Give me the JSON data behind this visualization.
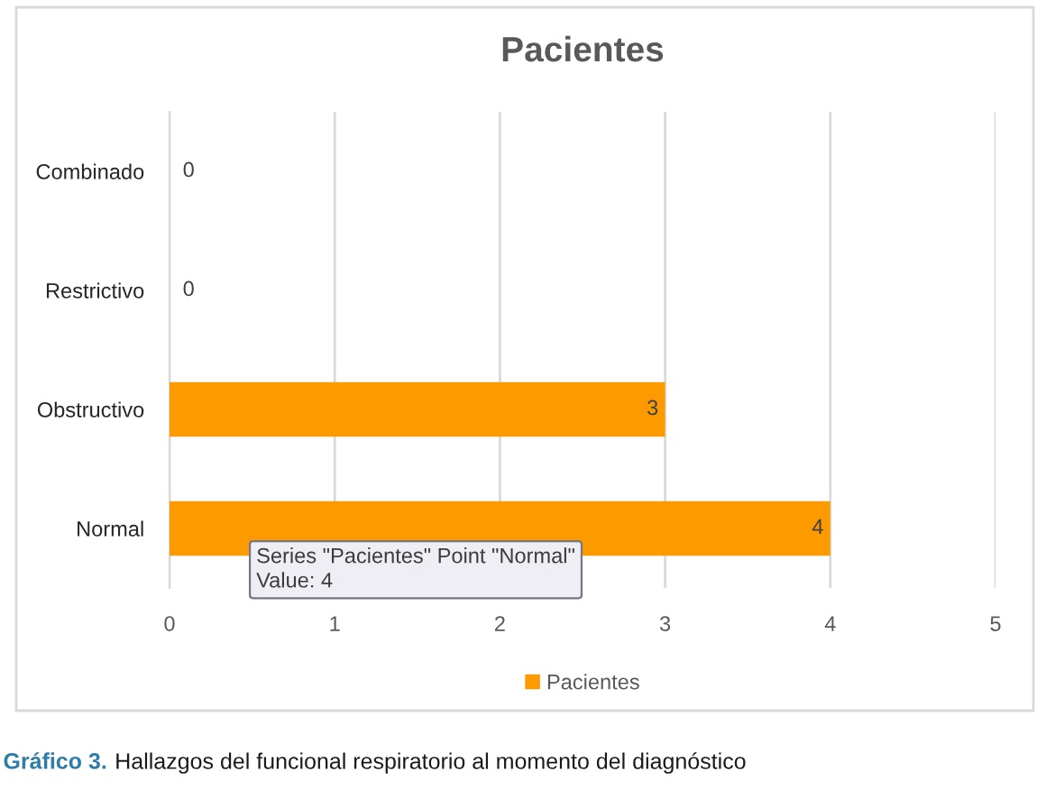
{
  "chart_data": {
    "type": "bar",
    "orientation": "horizontal",
    "title": "Pacientes",
    "categories": [
      "Combinado",
      "Restrictivo",
      "Obstructivo",
      "Normal"
    ],
    "series": [
      {
        "name": "Pacientes",
        "color": "#fd9a00",
        "values": [
          0,
          0,
          3,
          4
        ]
      }
    ],
    "xlim": [
      0,
      5
    ],
    "xticks": [
      0,
      1,
      2,
      3,
      4,
      5
    ],
    "grid": "x",
    "legend": "bottom",
    "data_labels": true,
    "annotations": [
      "Series \"Pacientes\" Point \"Normal\"\nValue: 4",
      "Gráfico 3.",
      "Hallazgos del funcional respiratorio al momento del diagnóstico"
    ]
  }
}
